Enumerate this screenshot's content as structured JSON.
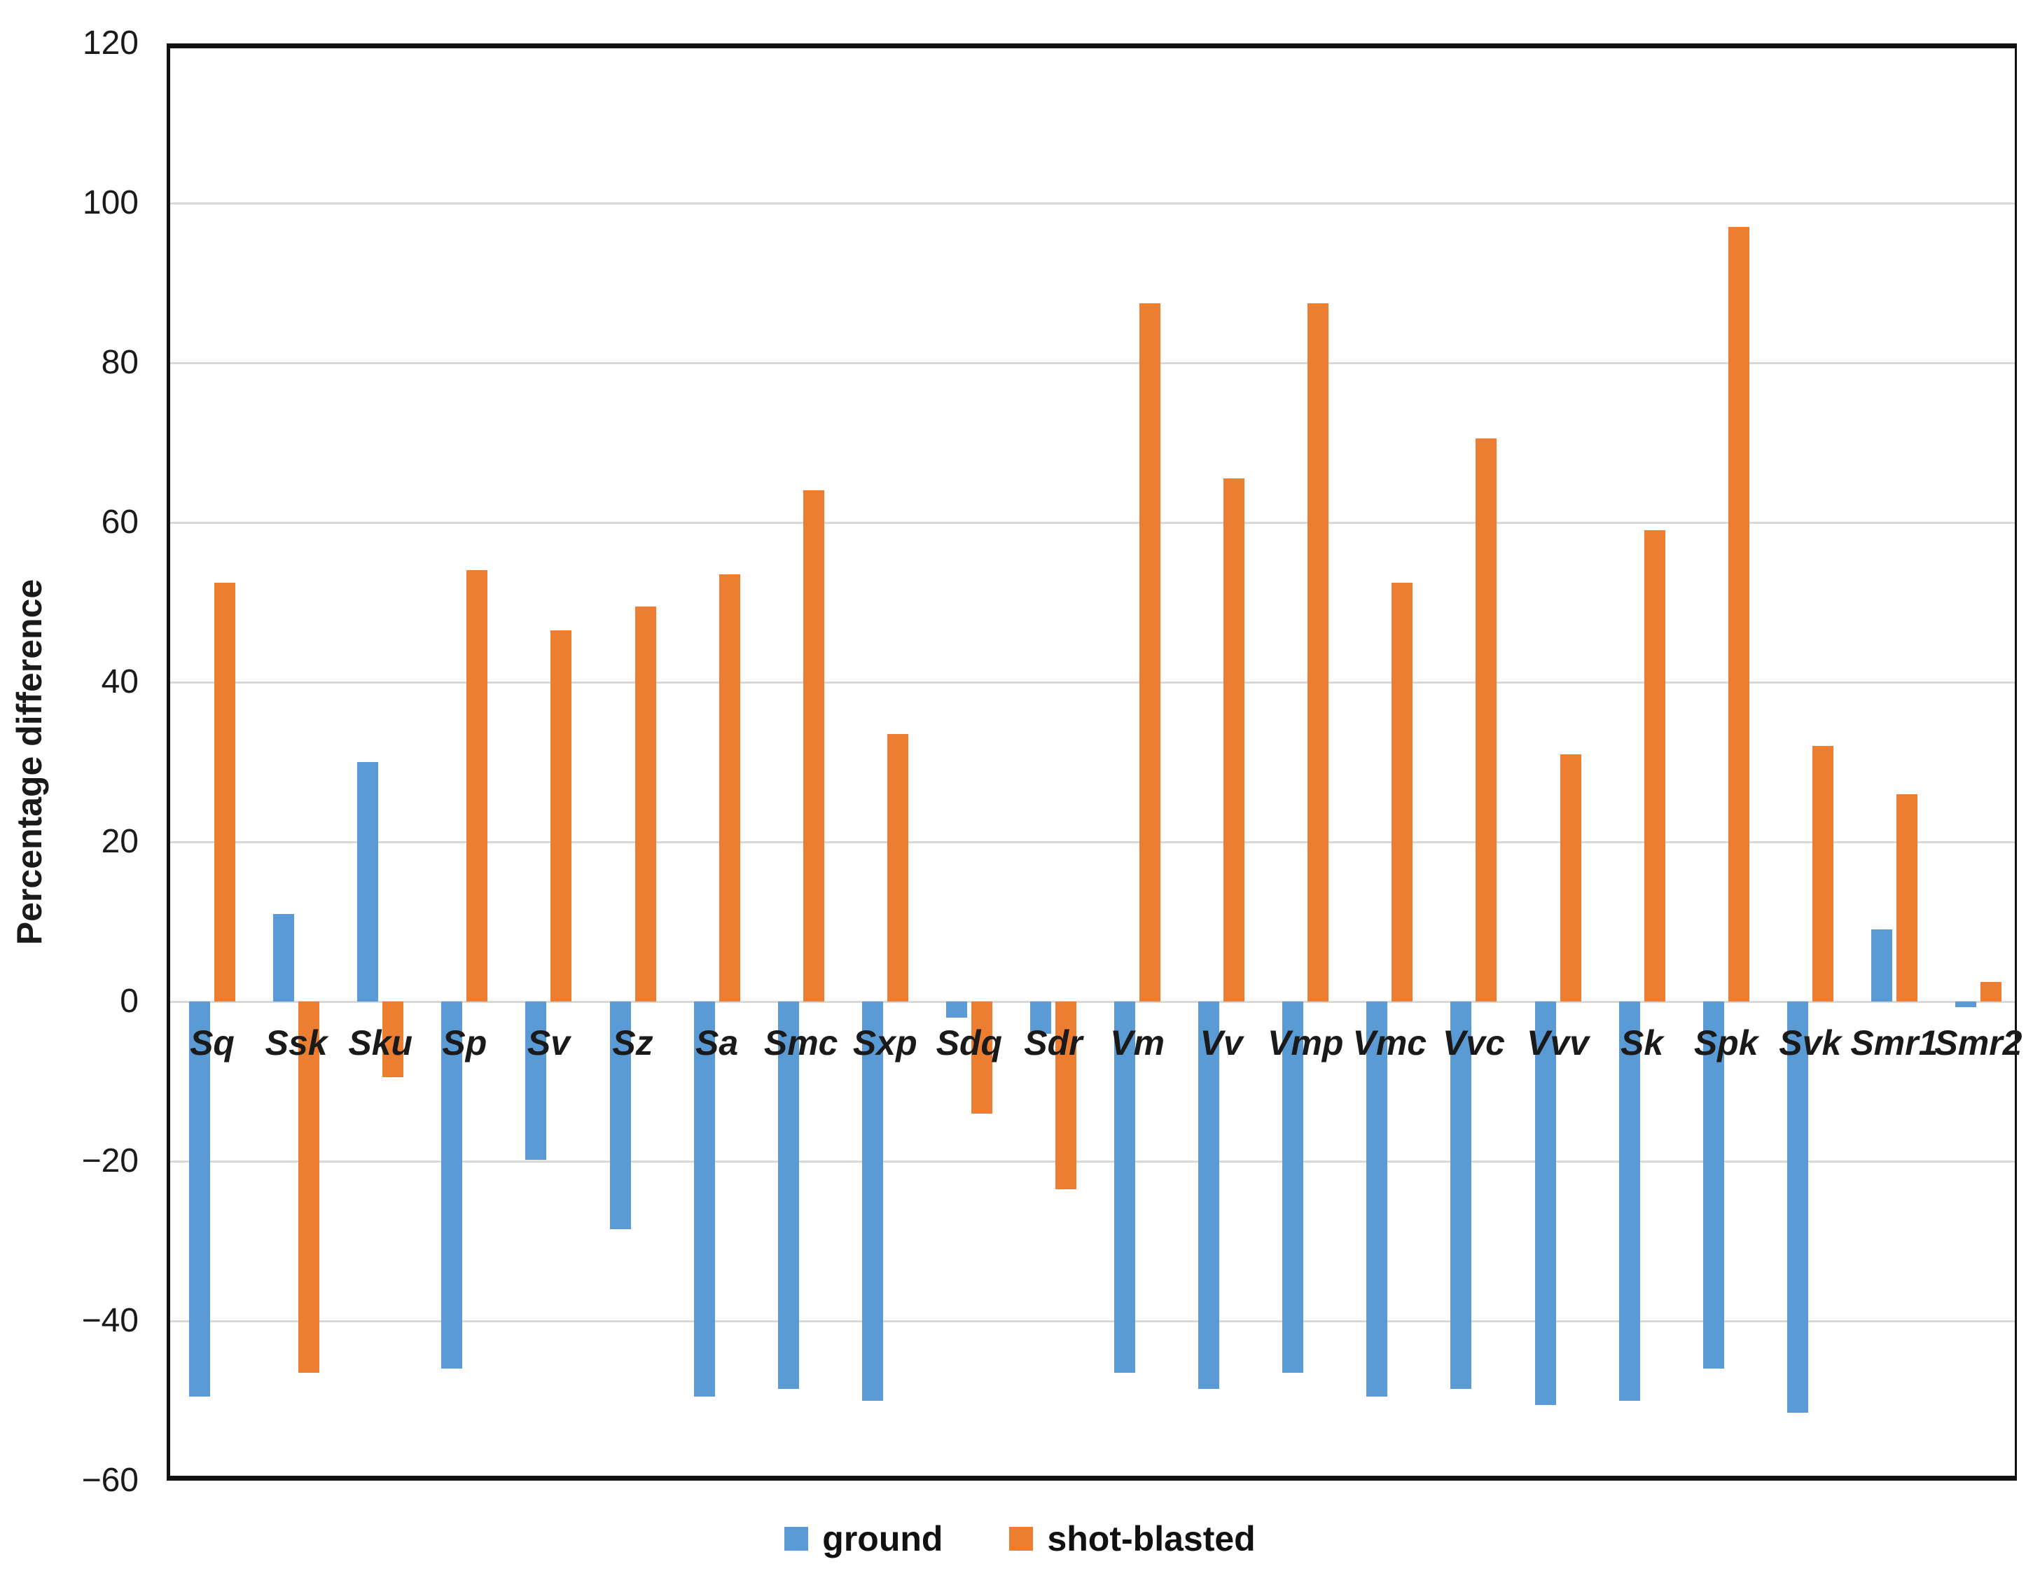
{
  "figure": {
    "background": "#ffffff"
  },
  "colors": {
    "gridline": "#d9d9d9",
    "axis_border": "#111111",
    "text": "#1a1a1a",
    "ground": "#5B9BD5",
    "shot_blasted": "#ED7D31"
  },
  "y_axis": {
    "title": "Percentage difference",
    "ticks": [
      120,
      100,
      80,
      60,
      40,
      20,
      0,
      -20,
      -40,
      -60
    ]
  },
  "chart_data": {
    "type": "bar",
    "title": "",
    "xlabel": "",
    "ylabel": "Percentage difference",
    "ylim": [
      -60,
      120
    ],
    "grid": true,
    "legend_position": "bottom",
    "categories": [
      "Sq",
      "Ssk",
      "Sku",
      "Sp",
      "Sv",
      "Sz",
      "Sa",
      "Smc",
      "Sxp",
      "Sdq",
      "Sdr",
      "Vm",
      "Vv",
      "Vmp",
      "Vmc",
      "Vvc",
      "Vvv",
      "Sk",
      "Spk",
      "Svk",
      "Smr1",
      "Smr2"
    ],
    "series": [
      {
        "name": "ground",
        "color": "#5B9BD5",
        "values": [
          -49.5,
          11,
          30,
          -46,
          -19.8,
          -28.5,
          -49.5,
          -48.5,
          -50,
          -2,
          -4,
          -46.5,
          -48.5,
          -46.5,
          -49.5,
          -48.5,
          -50.5,
          -50,
          -46,
          -51.5,
          9,
          -0.7
        ]
      },
      {
        "name": "shot-blasted",
        "color": "#ED7D31",
        "values": [
          52.5,
          -46.5,
          -9.5,
          54,
          46.5,
          49.5,
          53.5,
          64,
          33.5,
          -14,
          -23.5,
          87.5,
          65.5,
          87.5,
          52.5,
          70.5,
          31,
          59,
          97,
          32,
          26,
          2.5
        ]
      }
    ]
  }
}
